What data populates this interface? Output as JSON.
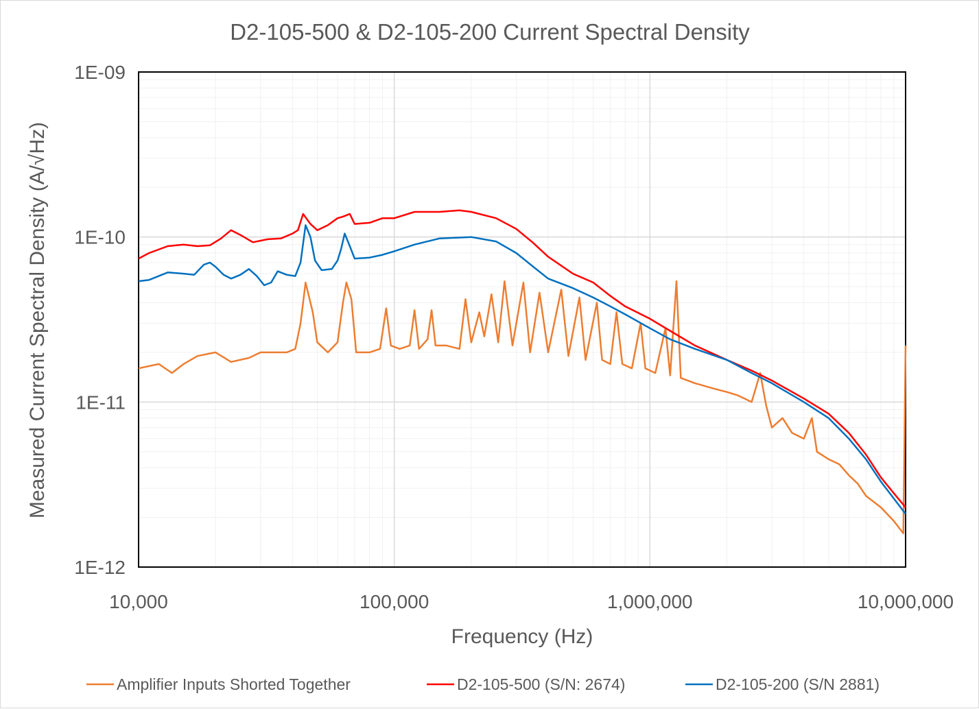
{
  "chart_data": {
    "type": "line",
    "title": "D2-105-500 & D2-105-200 Current Spectral Density",
    "xlabel": "Frequency (Hz)",
    "ylabel": "Measured Current Spectral Density (A/√Hz)",
    "xscale": "log",
    "yscale": "log",
    "xlim": [
      10000,
      10000000
    ],
    "ylim": [
      1e-12,
      1e-09
    ],
    "x_tick_values": [
      10000,
      100000,
      1000000,
      10000000
    ],
    "x_tick_labels": [
      "10,000",
      "100,000",
      "1,000,000",
      "10,000,000"
    ],
    "y_tick_values": [
      1e-09,
      1e-10,
      1e-11,
      1e-12
    ],
    "y_tick_labels": [
      "1E-09",
      "1E-10",
      "1E-11",
      "1E-12"
    ],
    "grid": "major and minor",
    "legend": "bottom",
    "series": [
      {
        "name": "Amplifier Inputs Shorted Together",
        "color": "#ed7d31",
        "points": [
          [
            10000,
            1.6e-11
          ],
          [
            12000,
            1.7e-11
          ],
          [
            13500,
            1.5e-11
          ],
          [
            15000,
            1.7e-11
          ],
          [
            17000,
            1.9e-11
          ],
          [
            20000,
            2e-11
          ],
          [
            23000,
            1.75e-11
          ],
          [
            27000,
            1.85e-11
          ],
          [
            30000,
            2e-11
          ],
          [
            35000,
            2e-11
          ],
          [
            38000,
            2e-11
          ],
          [
            41000,
            2.1e-11
          ],
          [
            43000,
            3e-11
          ],
          [
            45000,
            5.3e-11
          ],
          [
            48000,
            3.5e-11
          ],
          [
            50000,
            2.3e-11
          ],
          [
            55000,
            2e-11
          ],
          [
            60000,
            2.3e-11
          ],
          [
            63000,
            4e-11
          ],
          [
            65000,
            5.3e-11
          ],
          [
            68000,
            4.2e-11
          ],
          [
            71000,
            2e-11
          ],
          [
            80000,
            2e-11
          ],
          [
            88000,
            2.1e-11
          ],
          [
            93000,
            3.7e-11
          ],
          [
            97000,
            2.2e-11
          ],
          [
            105000,
            2.1e-11
          ],
          [
            115000,
            2.2e-11
          ],
          [
            120000,
            3.6e-11
          ],
          [
            125000,
            2.1e-11
          ],
          [
            135000,
            2.4e-11
          ],
          [
            140000,
            3.6e-11
          ],
          [
            145000,
            2.2e-11
          ],
          [
            160000,
            2.2e-11
          ],
          [
            180000,
            2.1e-11
          ],
          [
            190000,
            4.2e-11
          ],
          [
            200000,
            2.3e-11
          ],
          [
            215000,
            3.5e-11
          ],
          [
            225000,
            2.5e-11
          ],
          [
            240000,
            4.5e-11
          ],
          [
            255000,
            2.3e-11
          ],
          [
            270000,
            5.4e-11
          ],
          [
            290000,
            2.2e-11
          ],
          [
            320000,
            5.3e-11
          ],
          [
            340000,
            2e-11
          ],
          [
            370000,
            4.6e-11
          ],
          [
            400000,
            2e-11
          ],
          [
            450000,
            4.8e-11
          ],
          [
            480000,
            1.9e-11
          ],
          [
            530000,
            4.3e-11
          ],
          [
            560000,
            1.8e-11
          ],
          [
            620000,
            4e-11
          ],
          [
            650000,
            1.8e-11
          ],
          [
            700000,
            1.7e-11
          ],
          [
            740000,
            3.5e-11
          ],
          [
            780000,
            1.7e-11
          ],
          [
            850000,
            1.6e-11
          ],
          [
            920000,
            3e-11
          ],
          [
            960000,
            1.6e-11
          ],
          [
            1050000,
            1.5e-11
          ],
          [
            1150000,
            2.8e-11
          ],
          [
            1200000,
            1.45e-11
          ],
          [
            1270000,
            5.4e-11
          ],
          [
            1320000,
            1.4e-11
          ],
          [
            1500000,
            1.3e-11
          ],
          [
            1800000,
            1.2e-11
          ],
          [
            2000000,
            1.15e-11
          ],
          [
            2200000,
            1.1e-11
          ],
          [
            2500000,
            1e-11
          ],
          [
            2700000,
            1.5e-11
          ],
          [
            2850000,
            9.5e-12
          ],
          [
            3000000,
            7e-12
          ],
          [
            3300000,
            8e-12
          ],
          [
            3600000,
            6.5e-12
          ],
          [
            4000000,
            6e-12
          ],
          [
            4300000,
            8e-12
          ],
          [
            4500000,
            5e-12
          ],
          [
            5000000,
            4.5e-12
          ],
          [
            5500000,
            4.2e-12
          ],
          [
            6000000,
            3.6e-12
          ],
          [
            6500000,
            3.2e-12
          ],
          [
            7000000,
            2.7e-12
          ],
          [
            8000000,
            2.3e-12
          ],
          [
            9000000,
            1.9e-12
          ],
          [
            9800000,
            1.6e-12
          ],
          [
            10000000,
            2.2e-11
          ]
        ]
      },
      {
        "name": "D2-105-500 (S/N: 2674)",
        "color": "#ff0000",
        "points": [
          [
            10000,
            7.4e-11
          ],
          [
            11000,
            8e-11
          ],
          [
            13000,
            8.8e-11
          ],
          [
            15000,
            9e-11
          ],
          [
            17000,
            8.8e-11
          ],
          [
            19000,
            8.9e-11
          ],
          [
            21000,
            9.8e-11
          ],
          [
            23000,
            1.1e-10
          ],
          [
            25000,
            1.03e-10
          ],
          [
            28000,
            9.3e-11
          ],
          [
            32000,
            9.7e-11
          ],
          [
            36000,
            9.8e-11
          ],
          [
            40000,
            1.05e-10
          ],
          [
            42000,
            1.1e-10
          ],
          [
            44000,
            1.38e-10
          ],
          [
            47000,
            1.2e-10
          ],
          [
            50000,
            1.1e-10
          ],
          [
            55000,
            1.18e-10
          ],
          [
            60000,
            1.3e-10
          ],
          [
            63000,
            1.33e-10
          ],
          [
            67000,
            1.38e-10
          ],
          [
            70000,
            1.2e-10
          ],
          [
            80000,
            1.22e-10
          ],
          [
            90000,
            1.3e-10
          ],
          [
            100000,
            1.3e-10
          ],
          [
            120000,
            1.42e-10
          ],
          [
            150000,
            1.42e-10
          ],
          [
            180000,
            1.45e-10
          ],
          [
            200000,
            1.42e-10
          ],
          [
            250000,
            1.3e-10
          ],
          [
            300000,
            1.12e-10
          ],
          [
            350000,
            9.2e-11
          ],
          [
            400000,
            7.6e-11
          ],
          [
            500000,
            6e-11
          ],
          [
            600000,
            5.3e-11
          ],
          [
            700000,
            4.4e-11
          ],
          [
            800000,
            3.8e-11
          ],
          [
            1000000,
            3.2e-11
          ],
          [
            1200000,
            2.7e-11
          ],
          [
            1500000,
            2.2e-11
          ],
          [
            2000000,
            1.8e-11
          ],
          [
            2500000,
            1.55e-11
          ],
          [
            3000000,
            1.35e-11
          ],
          [
            4000000,
            1.05e-11
          ],
          [
            5000000,
            8.5e-12
          ],
          [
            6000000,
            6.5e-12
          ],
          [
            7000000,
            4.8e-12
          ],
          [
            8000000,
            3.5e-12
          ],
          [
            9000000,
            2.8e-12
          ],
          [
            10000000,
            2.3e-12
          ]
        ]
      },
      {
        "name": "D2-105-200 (S/N 2881)",
        "color": "#0070c0",
        "points": [
          [
            10000,
            5.4e-11
          ],
          [
            11000,
            5.5e-11
          ],
          [
            13000,
            6.1e-11
          ],
          [
            15000,
            6e-11
          ],
          [
            16500,
            5.9e-11
          ],
          [
            18000,
            6.8e-11
          ],
          [
            19000,
            7e-11
          ],
          [
            20000,
            6.6e-11
          ],
          [
            21500,
            5.9e-11
          ],
          [
            23000,
            5.6e-11
          ],
          [
            25000,
            5.9e-11
          ],
          [
            27000,
            6.4e-11
          ],
          [
            29000,
            5.8e-11
          ],
          [
            31000,
            5.1e-11
          ],
          [
            33000,
            5.3e-11
          ],
          [
            35000,
            6.2e-11
          ],
          [
            38000,
            5.9e-11
          ],
          [
            41000,
            5.8e-11
          ],
          [
            43000,
            7e-11
          ],
          [
            45000,
            1.18e-10
          ],
          [
            47000,
            1e-10
          ],
          [
            49000,
            7.2e-11
          ],
          [
            52000,
            6.3e-11
          ],
          [
            57000,
            6.4e-11
          ],
          [
            60000,
            7.2e-11
          ],
          [
            62000,
            8.5e-11
          ],
          [
            64000,
            1.05e-10
          ],
          [
            67000,
            8.8e-11
          ],
          [
            70000,
            7.4e-11
          ],
          [
            80000,
            7.5e-11
          ],
          [
            90000,
            7.8e-11
          ],
          [
            100000,
            8.2e-11
          ],
          [
            120000,
            9e-11
          ],
          [
            150000,
            9.8e-11
          ],
          [
            200000,
            1e-10
          ],
          [
            250000,
            9.4e-11
          ],
          [
            300000,
            8e-11
          ],
          [
            350000,
            6.6e-11
          ],
          [
            400000,
            5.6e-11
          ],
          [
            500000,
            4.9e-11
          ],
          [
            600000,
            4.3e-11
          ],
          [
            700000,
            3.8e-11
          ],
          [
            800000,
            3.4e-11
          ],
          [
            1000000,
            2.8e-11
          ],
          [
            1200000,
            2.4e-11
          ],
          [
            1500000,
            2.1e-11
          ],
          [
            2000000,
            1.8e-11
          ],
          [
            2500000,
            1.5e-11
          ],
          [
            3000000,
            1.3e-11
          ],
          [
            4000000,
            1e-11
          ],
          [
            5000000,
            8e-12
          ],
          [
            6000000,
            6e-12
          ],
          [
            7000000,
            4.5e-12
          ],
          [
            8000000,
            3.3e-12
          ],
          [
            9000000,
            2.6e-12
          ],
          [
            10000000,
            2.1e-12
          ]
        ]
      }
    ]
  }
}
